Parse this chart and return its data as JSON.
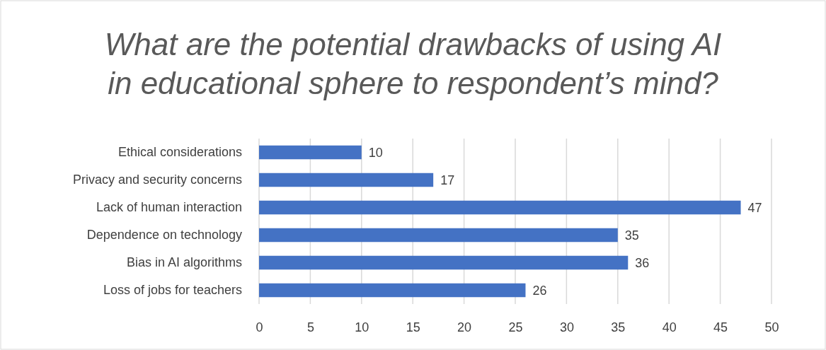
{
  "chart_data": {
    "type": "bar",
    "orientation": "horizontal",
    "title": "What are the potential drawbacks of using AI in educational sphere to respondent’s mind?",
    "categories": [
      "Ethical considerations",
      "Privacy and security concerns",
      "Lack of human interaction",
      "Dependence on technology",
      "Bias in AI algorithms",
      "Loss of jobs for teachers"
    ],
    "values": [
      10,
      17,
      47,
      35,
      36,
      26
    ],
    "color": "#4472c4",
    "xlim": [
      0,
      50
    ],
    "xticks": [
      0,
      5,
      10,
      15,
      20,
      25,
      30,
      35,
      40,
      45,
      50
    ],
    "grid": "x",
    "data_labels": true
  }
}
